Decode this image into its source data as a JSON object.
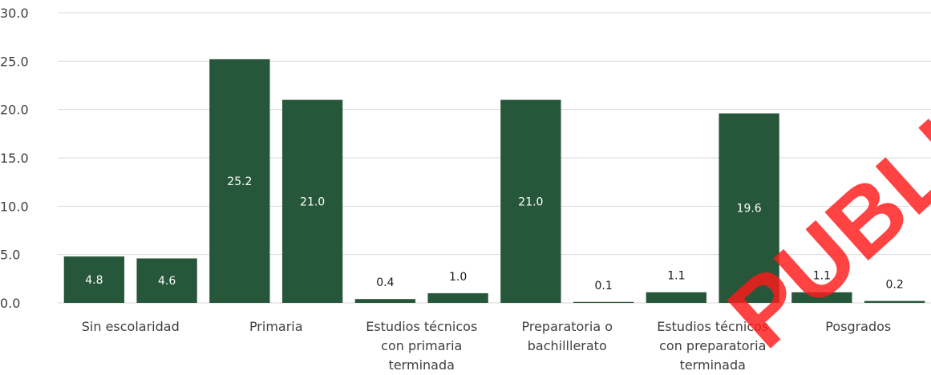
{
  "watermark": "PUBLIC",
  "colors": {
    "bar": "#27573a",
    "grid": "#d9d9d9",
    "axis_text": "#404040",
    "label_inside": "#ffffff",
    "label_outside": "#1a1a1a",
    "watermark": "#ff1a1a"
  },
  "chart_data": {
    "type": "bar",
    "title": "",
    "xlabel": "",
    "ylabel": "",
    "ylim": [
      0,
      30
    ],
    "yticks": [
      "0.0",
      "5.0",
      "10.0",
      "15.0",
      "20.0",
      "25.0",
      "30.0"
    ],
    "grid": true,
    "category_labels": [
      [
        "Sin escolaridad"
      ],
      [
        "Primaria"
      ],
      [
        "Estudios técnicos",
        "con primaria",
        "terminada"
      ],
      [
        "Preparatoria o",
        "bachilllerato"
      ],
      [
        "Estudios técnicos",
        "con preparatoria",
        "terminada"
      ],
      [
        "Posgrados"
      ]
    ],
    "values": [
      4.8,
      4.6,
      25.2,
      21.0,
      0.4,
      1.0,
      21.0,
      0.1,
      1.1,
      19.6,
      1.1,
      0.2
    ],
    "value_labels": [
      "4.8",
      "4.6",
      "25.2",
      "21.0",
      "0.4",
      "1.0",
      "21.0",
      "0.1",
      "1.1",
      "19.6",
      "1.1",
      "0.2"
    ]
  }
}
